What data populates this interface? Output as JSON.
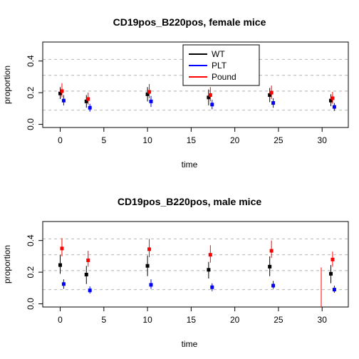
{
  "chart_data": [
    {
      "type": "scatter",
      "title": "CD19pos_B220pos, female mice",
      "xlabel": "time",
      "ylabel": "proportion",
      "xlim": [
        -2,
        33
      ],
      "ylim": [
        -0.02,
        0.52
      ],
      "xticks": [
        0,
        5,
        10,
        15,
        20,
        25,
        30
      ],
      "yticks": [
        0.0,
        0.2,
        0.4
      ],
      "reference_lines": [
        0.09,
        0.21,
        0.31,
        0.41
      ],
      "grid": false,
      "legend": {
        "position": "top-center",
        "entries": [
          "WT",
          "PLT",
          "Pound"
        ]
      },
      "series": [
        {
          "name": "WT",
          "color": "#000000",
          "x_offset": 0,
          "x": [
            0,
            3,
            10,
            17,
            24,
            31
          ],
          "y": [
            0.195,
            0.145,
            0.19,
            0.17,
            0.185,
            0.15
          ],
          "lo": [
            0.16,
            0.105,
            0.145,
            0.12,
            0.14,
            0.115
          ],
          "hi": [
            0.235,
            0.185,
            0.235,
            0.22,
            0.23,
            0.19
          ]
        },
        {
          "name": "PLT",
          "color": "#0000ff",
          "x_offset": 0.4,
          "x": [
            0,
            3,
            10,
            17,
            24,
            31
          ],
          "y": [
            0.15,
            0.105,
            0.145,
            0.125,
            0.135,
            0.11
          ],
          "lo": [
            0.12,
            0.08,
            0.11,
            0.095,
            0.105,
            0.085
          ],
          "hi": [
            0.185,
            0.13,
            0.18,
            0.155,
            0.165,
            0.135
          ]
        },
        {
          "name": "Pound",
          "color": "#ff0000",
          "x_offset": 0.2,
          "x": [
            0,
            3,
            10,
            17,
            24,
            31
          ],
          "y": [
            0.21,
            0.16,
            0.205,
            0.185,
            0.2,
            0.165
          ],
          "lo": [
            0.17,
            0.125,
            0.165,
            0.145,
            0.16,
            0.13
          ],
          "hi": [
            0.26,
            0.2,
            0.255,
            0.235,
            0.245,
            0.205
          ]
        }
      ]
    },
    {
      "type": "scatter",
      "title": "CD19pos_B220pos, male mice",
      "xlabel": "time",
      "ylabel": "proportion",
      "xlim": [
        -2,
        33
      ],
      "ylim": [
        -0.02,
        0.52
      ],
      "xticks": [
        0,
        5,
        10,
        15,
        20,
        25,
        30
      ],
      "yticks": [
        0.0,
        0.2,
        0.4
      ],
      "reference_lines": [
        0.09,
        0.21,
        0.31,
        0.41
      ],
      "grid": false,
      "series": [
        {
          "name": "WT",
          "color": "#000000",
          "x_offset": 0,
          "x": [
            0,
            3,
            10,
            17,
            24,
            31
          ],
          "y": [
            0.245,
            0.185,
            0.24,
            0.215,
            0.235,
            0.19
          ],
          "lo": [
            0.19,
            0.125,
            0.175,
            0.16,
            0.175,
            0.13
          ],
          "hi": [
            0.31,
            0.24,
            0.305,
            0.265,
            0.3,
            0.245
          ]
        },
        {
          "name": "PLT",
          "color": "#0000ff",
          "x_offset": 0.4,
          "x": [
            0,
            3,
            10,
            17,
            24,
            31
          ],
          "y": [
            0.125,
            0.085,
            0.12,
            0.105,
            0.115,
            0.09
          ],
          "lo": [
            0.095,
            0.065,
            0.095,
            0.08,
            0.095,
            0.07
          ],
          "hi": [
            0.155,
            0.11,
            0.155,
            0.13,
            0.145,
            0.115
          ]
        },
        {
          "name": "Pound",
          "color": "#ff0000",
          "x_offset": 0.2,
          "x": [
            0,
            3,
            10,
            17,
            24,
            31
          ],
          "y": [
            0.35,
            0.275,
            0.345,
            0.31,
            0.335,
            0.28
          ],
          "lo": [
            0.3,
            0.235,
            0.295,
            0.26,
            0.29,
            0.235
          ],
          "hi": [
            0.415,
            0.335,
            0.41,
            0.37,
            0.4,
            0.33
          ]
        }
      ],
      "extra_line": {
        "color": "#ff0000",
        "x": 29.9,
        "y_from": 0.23,
        "y_to": -0.02
      }
    }
  ]
}
